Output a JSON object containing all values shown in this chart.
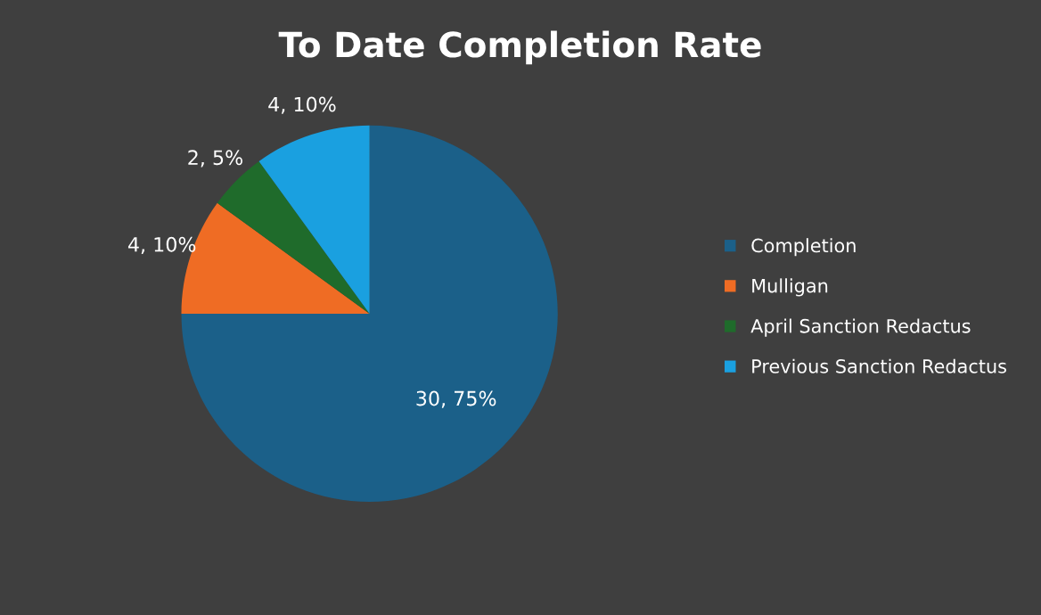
{
  "chart_data": {
    "type": "pie",
    "title": "To Date Completion Rate",
    "categories": [
      "Completion",
      "Mulligan",
      "April Sanction Redactus",
      "Previous Sanction Redactus"
    ],
    "values": [
      30,
      4,
      2,
      4
    ],
    "value_labels": [
      "30, 75%",
      "4, 10%",
      "2, 5%",
      "4, 10%"
    ],
    "colors": [
      "#1b6089",
      "#ef6c24",
      "#1f6b2b",
      "#1aa0e0"
    ],
    "legend": "right"
  }
}
